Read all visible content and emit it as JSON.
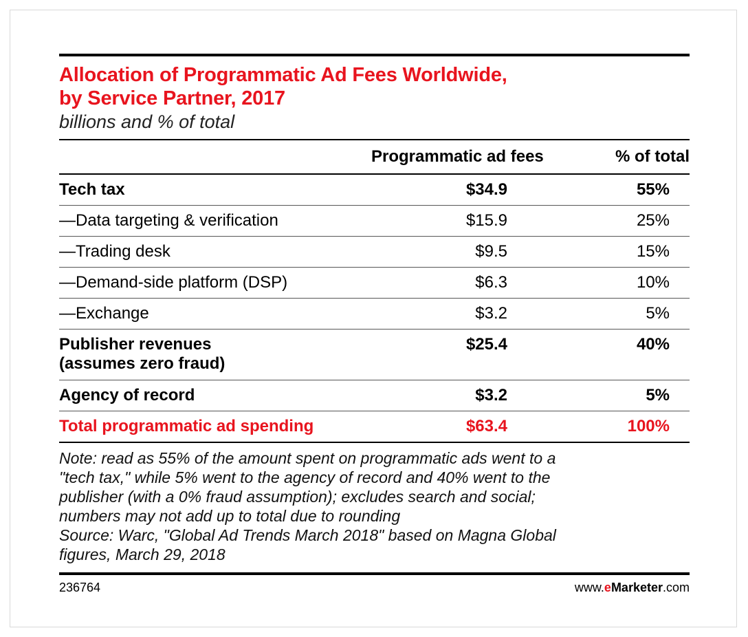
{
  "title_line1": "Allocation of Programmatic Ad Fees Worldwide,",
  "title_line2": "by Service Partner, 2017",
  "subtitle": "billions and % of total",
  "header": {
    "col_fees": "Programmatic ad fees",
    "col_pct": "% of total"
  },
  "rows": [
    {
      "label": "Tech tax",
      "fees": "$34.9",
      "pct": "55%"
    },
    {
      "label": "—Data targeting & verification",
      "fees": "$15.9",
      "pct": "25%"
    },
    {
      "label": "—Trading desk",
      "fees": "$9.5",
      "pct": "15%"
    },
    {
      "label": "—Demand-side platform (DSP)",
      "fees": "$6.3",
      "pct": "10%"
    },
    {
      "label": "—Exchange",
      "fees": "$3.2",
      "pct": "5%"
    },
    {
      "label_line1": "Publisher revenues",
      "label_line2": "(assumes zero fraud)",
      "fees": "$25.4",
      "pct": "40%"
    },
    {
      "label": "Agency of record",
      "fees": "$3.2",
      "pct": "5%"
    },
    {
      "label": "Total programmatic ad spending",
      "fees": "$63.4",
      "pct": "100%"
    }
  ],
  "note_lines": [
    "Note: read as 55% of the amount spent on programmatic ads went to a",
    "\"tech tax,\" while 5% went to the agency of record and 40% went to the",
    "publisher (with a 0% fraud assumption); excludes search and social;",
    "numbers may not add up to total due to rounding",
    "Source: Warc, \"Global Ad Trends March 2018\" based on Magna Global",
    "figures, March 29, 2018"
  ],
  "footer": {
    "chart_id": "236764",
    "brand_prefix": "www.",
    "brand_e": "e",
    "brand_marketer": "Marketer",
    "brand_suffix": ".com"
  },
  "colors": {
    "accent": "#e8141e"
  },
  "chart_data": {
    "type": "table",
    "title": "Allocation of Programmatic Ad Fees Worldwide, by Service Partner, 2017",
    "subtitle": "billions and % of total",
    "columns": [
      "",
      "Programmatic ad fees",
      "% of total"
    ],
    "rows": [
      [
        "Tech tax",
        34.9,
        55
      ],
      [
        "—Data targeting & verification",
        15.9,
        25
      ],
      [
        "—Trading desk",
        9.5,
        15
      ],
      [
        "—Demand-side platform (DSP)",
        6.3,
        10
      ],
      [
        "—Exchange",
        3.2,
        5
      ],
      [
        "Publisher revenues (assumes zero fraud)",
        25.4,
        40
      ],
      [
        "Agency of record",
        3.2,
        5
      ],
      [
        "Total programmatic ad spending",
        63.4,
        100
      ]
    ]
  }
}
